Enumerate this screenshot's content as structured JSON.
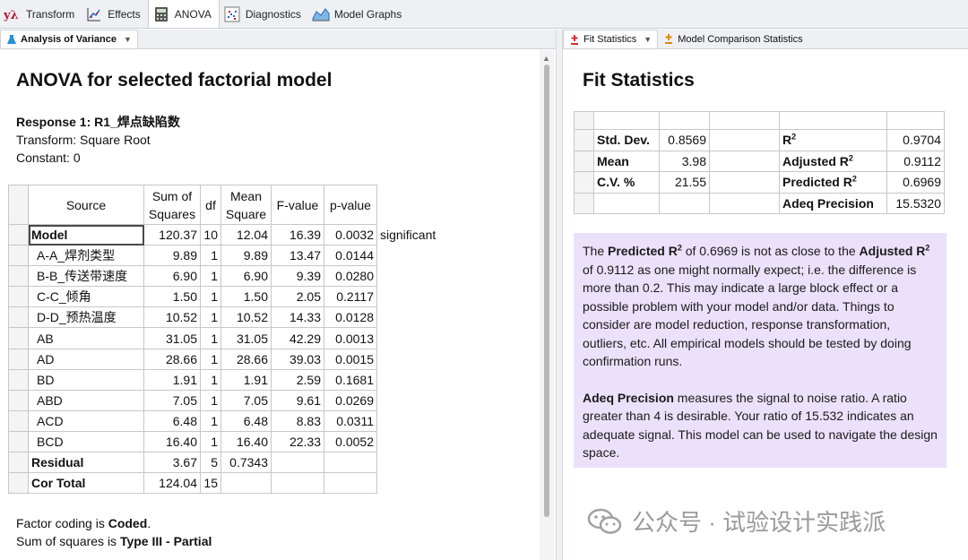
{
  "top_tabs": [
    {
      "label": "Transform",
      "icon": "lambda-icon"
    },
    {
      "label": "Effects",
      "icon": "effects-plot-icon"
    },
    {
      "label": "ANOVA",
      "icon": "calculator-icon"
    },
    {
      "label": "Diagnostics",
      "icon": "diagnostics-plot-icon"
    },
    {
      "label": "Model Graphs",
      "icon": "surface-plot-icon"
    }
  ],
  "left_panel": {
    "tab_label": "Analysis of Variance",
    "title": "ANOVA for selected factorial model",
    "response": "Response 1: R1_焊点缺陷数",
    "transform": "Transform: Square Root",
    "constant": "Constant: 0",
    "headers": {
      "source": "Source",
      "ss_1": "Sum of",
      "ss_2": "Squares",
      "df": "df",
      "ms_1": "Mean",
      "ms_2": "Square",
      "f": "F-value",
      "p": "p-value"
    },
    "rows": [
      {
        "source": "Model",
        "ss": "120.37",
        "df": "10",
        "ms": "12.04",
        "f": "16.39",
        "p": "0.0032",
        "note": "significant"
      },
      {
        "source": "A-A_焊剂类型",
        "ss": "9.89",
        "df": "1",
        "ms": "9.89",
        "f": "13.47",
        "p": "0.0144",
        "note": ""
      },
      {
        "source": "B-B_传送带速度",
        "ss": "6.90",
        "df": "1",
        "ms": "6.90",
        "f": "9.39",
        "p": "0.0280",
        "note": ""
      },
      {
        "source": "C-C_倾角",
        "ss": "1.50",
        "df": "1",
        "ms": "1.50",
        "f": "2.05",
        "p": "0.2117",
        "note": ""
      },
      {
        "source": "D-D_预热温度",
        "ss": "10.52",
        "df": "1",
        "ms": "10.52",
        "f": "14.33",
        "p": "0.0128",
        "note": ""
      },
      {
        "source": "AB",
        "ss": "31.05",
        "df": "1",
        "ms": "31.05",
        "f": "42.29",
        "p": "0.0013",
        "note": ""
      },
      {
        "source": "AD",
        "ss": "28.66",
        "df": "1",
        "ms": "28.66",
        "f": "39.03",
        "p": "0.0015",
        "note": ""
      },
      {
        "source": "BD",
        "ss": "1.91",
        "df": "1",
        "ms": "1.91",
        "f": "2.59",
        "p": "0.1681",
        "note": ""
      },
      {
        "source": "ABD",
        "ss": "7.05",
        "df": "1",
        "ms": "7.05",
        "f": "9.61",
        "p": "0.0269",
        "note": ""
      },
      {
        "source": "ACD",
        "ss": "6.48",
        "df": "1",
        "ms": "6.48",
        "f": "8.83",
        "p": "0.0311",
        "note": ""
      },
      {
        "source": "BCD",
        "ss": "16.40",
        "df": "1",
        "ms": "16.40",
        "f": "22.33",
        "p": "0.0052",
        "note": ""
      },
      {
        "source": "Residual",
        "ss": "3.67",
        "df": "5",
        "ms": "0.7343",
        "f": "",
        "p": "",
        "note": ""
      },
      {
        "source": "Cor Total",
        "ss": "124.04",
        "df": "15",
        "ms": "",
        "f": "",
        "p": "",
        "note": ""
      }
    ],
    "footer": {
      "coding_prefix": "Factor coding is ",
      "coding_value": "Coded",
      "coding_suffix": ".",
      "ss_prefix": "Sum of squares is ",
      "ss_value": "Type III - Partial"
    }
  },
  "right_panel": {
    "tabs": [
      {
        "label": "Fit Statistics"
      },
      {
        "label": "Model Comparison Statistics"
      }
    ],
    "title": "Fit Statistics",
    "fit_rows": [
      {
        "label": "Std. Dev.",
        "value": "0.8569",
        "label2": "R",
        "sup2": "2",
        "value2": "0.9704"
      },
      {
        "label": "Mean",
        "value": "3.98",
        "label2": "Adjusted R",
        "sup2": "2",
        "value2": "0.9112"
      },
      {
        "label": "C.V. %",
        "value": "21.55",
        "label2": "Predicted R",
        "sup2": "2",
        "value2": "0.6969"
      },
      {
        "label": "",
        "value": "",
        "label2": "Adeq Precision",
        "sup2": "",
        "value2": "15.5320"
      }
    ],
    "note": {
      "p1_a": "The ",
      "p1_b": "Predicted R",
      "p1_c": " of 0.6969 is not as close to the ",
      "p1_d": "Adjusted R",
      "p1_e": " of 0.9112 as one might normally expect; i.e. the difference is more than 0.2. This may indicate a large block effect or a possible problem with your model and/or data. Things to consider are model reduction, response transformation, outliers, etc. All empirical models should be tested by doing confirmation runs.",
      "sup": "2",
      "p2_a": "Adeq Precision",
      "p2_b": " measures the signal to noise ratio. A ratio greater than 4 is desirable. Your ratio of 15.532 indicates an adequate signal. This model can be used to navigate the design space."
    }
  },
  "watermark": "公众号 · 试验设计实践派",
  "colors": {
    "note_bg": "#ebe1fa",
    "tab_bar": "#eef0f4",
    "grid": "#c7c7c7"
  }
}
